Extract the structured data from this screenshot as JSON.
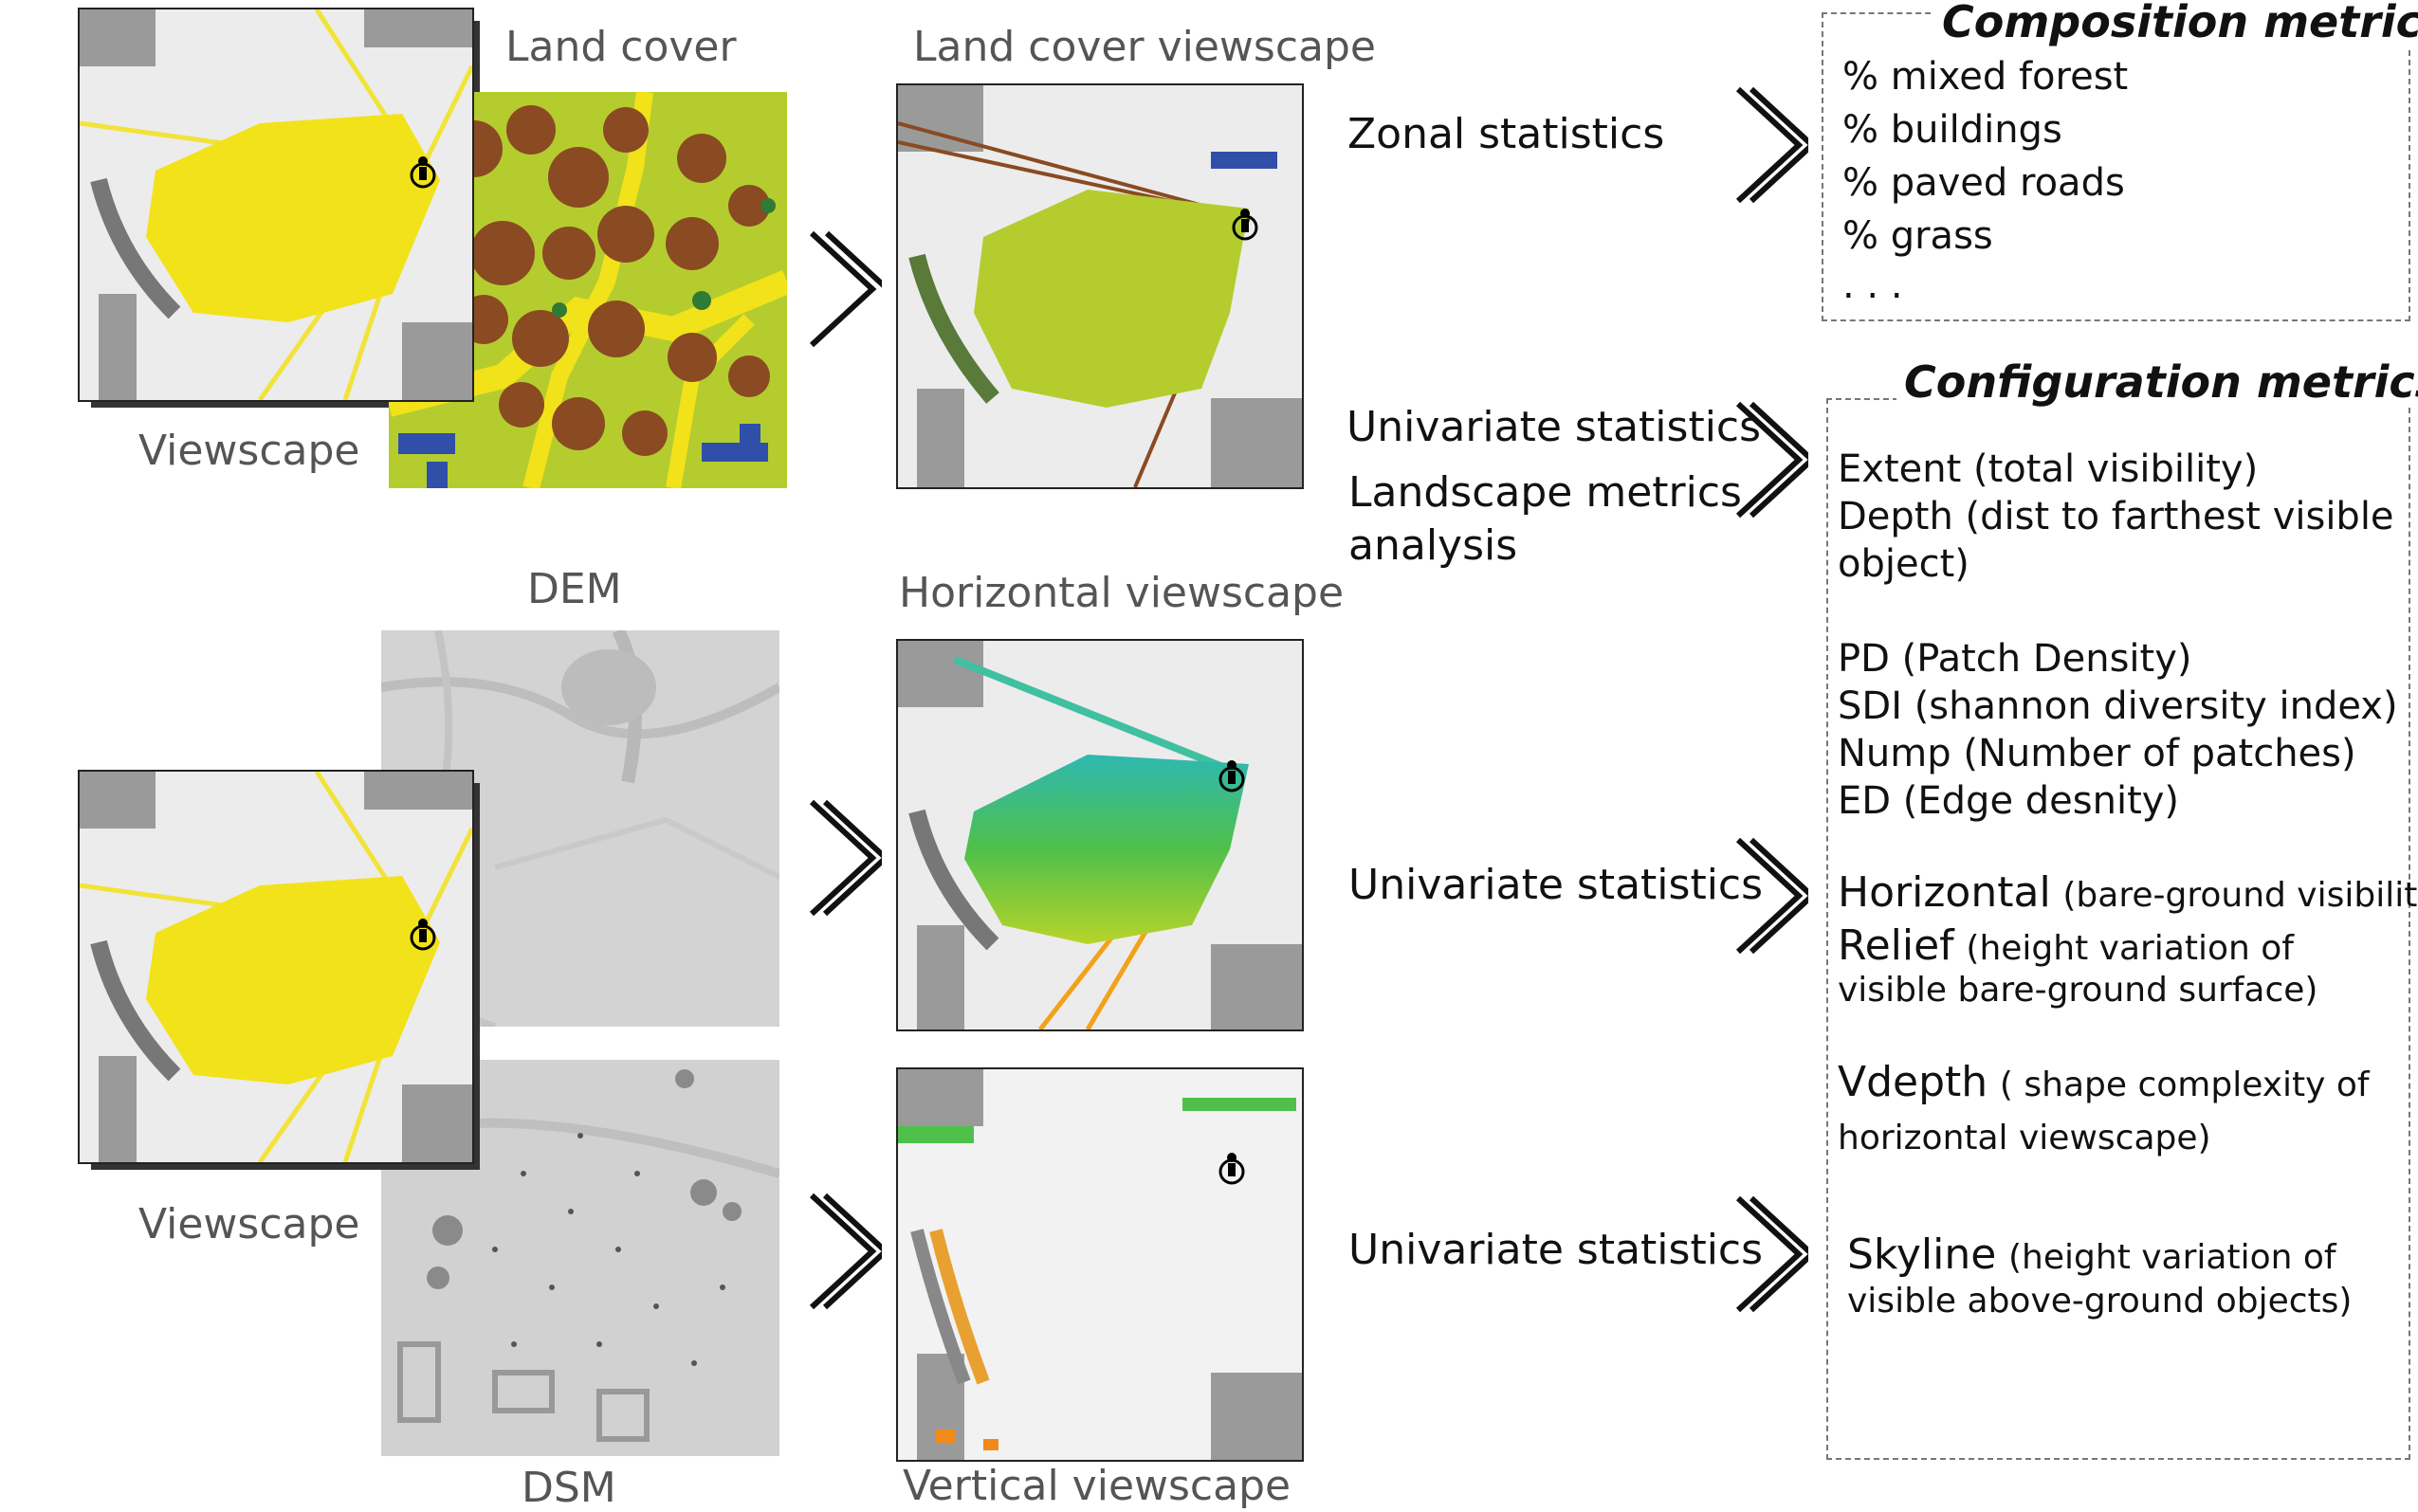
{
  "labels": {
    "land_cover": "Land cover",
    "viewscape_top": "Viewscape",
    "viewscape_bottom": "Viewscape",
    "dem": "DEM",
    "dsm": "DSM",
    "land_cover_viewscape": "Land cover viewscape",
    "horizontal_viewscape": "Horizontal viewscape",
    "vertical_viewscape": "Vertical viewscape"
  },
  "methods": {
    "zonal": "Zonal statistics",
    "univariate_1": "Univariate statistics",
    "landscape": "Landscape metrics",
    "analysis": "analysis",
    "univariate_2": "Univariate statistics",
    "univariate_3": "Univariate statistics"
  },
  "composition": {
    "title": "Composition metrics",
    "items": [
      "% mixed forest",
      "% buildings",
      "% paved roads",
      "% grass",
      ". . ."
    ]
  },
  "configuration": {
    "title": "Configuration metrics",
    "extent": "Extent (total visibility)",
    "depth_1": "Depth (dist to farthest visible",
    "depth_2": "object)",
    "pd": "PD (Patch Density)",
    "sdi": "SDI (shannon diversity index)",
    "nump": "Nump (Number of patches)",
    "ed": "ED (Edge desnity)",
    "horizontal_name": "Horizontal",
    "horizontal_desc": "(bare-ground visibility)",
    "relief_name": "Relief",
    "relief_desc_1": "(height variation of",
    "relief_desc_2": "visible bare-ground surface)",
    "vdepth_name": "Vdepth",
    "vdepth_desc_1": "( shape complexity of",
    "vdepth_desc_2": "horizontal viewscape)",
    "skyline_name": "Skyline",
    "skyline_desc_1": "(height variation of",
    "skyline_desc_2": "visible above-ground objects)"
  },
  "colors": {
    "viewscape_yellow": "#f2e21a",
    "landcover_green": "#b5cc2e",
    "landcover_brown": "#8a4a22",
    "building_blue": "#2f4fa8",
    "hillshade_gray": "#cfcfcf"
  }
}
